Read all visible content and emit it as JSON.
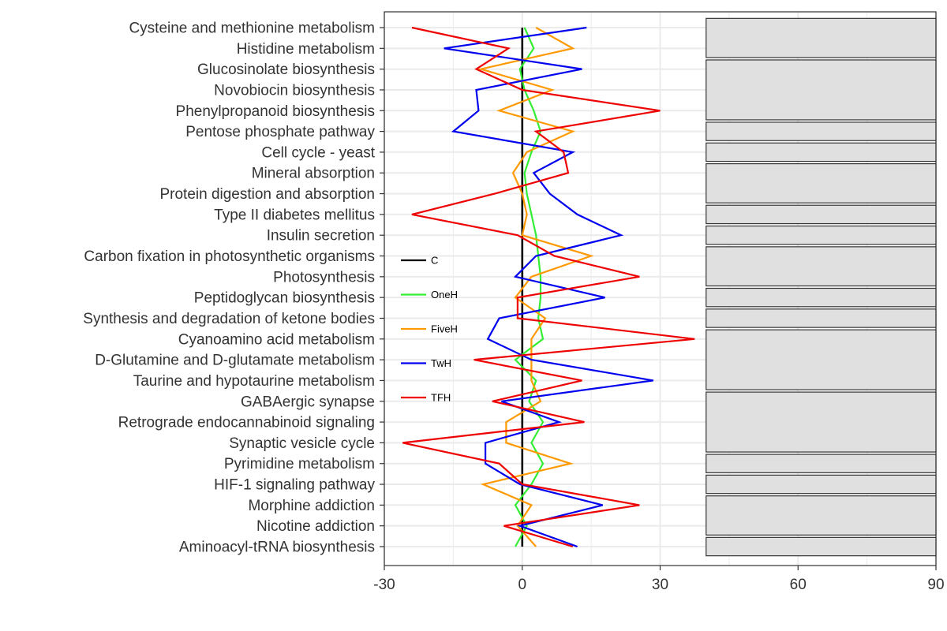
{
  "chart_data": {
    "type": "line",
    "orientation": "horizontal",
    "categories": [
      "Cysteine and methionine metabolism",
      "Histidine metabolism",
      "Glucosinolate biosynthesis",
      "Novobiocin biosynthesis",
      "Phenylpropanoid biosynthesis",
      "Pentose phosphate pathway",
      "Cell cycle - yeast",
      "Mineral absorption",
      "Protein digestion and absorption",
      "Type II diabetes mellitus",
      "Insulin secretion",
      "Carbon fixation in photosynthetic organisms",
      "Photosynthesis",
      "Peptidoglycan biosynthesis",
      "Synthesis and degradation of ketone bodies",
      "Cyanoamino acid metabolism",
      "D-Glutamine and D-glutamate metabolism",
      "Taurine and hypotaurine metabolism",
      "GABAergic synapse",
      "Retrograde endocannabinoid signaling",
      "Synaptic vesicle cycle",
      "Pyrimidine metabolism",
      "HIF-1 signaling pathway",
      "Morphine addiction",
      "Nicotine addiction",
      "Aminoacyl-tRNA biosynthesis"
    ],
    "series": [
      {
        "name": "C",
        "color": "#000000",
        "values": [
          0,
          0,
          0,
          0,
          0,
          0,
          0,
          0,
          0,
          0,
          0,
          0,
          0,
          0,
          0,
          0,
          0,
          0,
          0,
          0,
          0,
          0,
          0,
          0,
          0,
          0
        ]
      },
      {
        "name": "OneH",
        "color": "#33ee33",
        "values": [
          0.5,
          2.5,
          -0.5,
          0.5,
          2.5,
          4,
          2,
          0.5,
          1,
          2,
          3,
          3.5,
          4,
          4,
          3.5,
          4.5,
          -1.5,
          3,
          1.5,
          4.5,
          2,
          4.5,
          2,
          -1.5,
          1,
          -1.5
        ]
      },
      {
        "name": "FiveH",
        "color": "#ff9900",
        "values": [
          3,
          11,
          -9,
          6.5,
          -5,
          11,
          1,
          -2,
          0,
          1,
          0,
          15,
          2,
          -1.5,
          5,
          2,
          2,
          2,
          4,
          -3.5,
          -3.5,
          10.5,
          -8.5,
          2,
          -1,
          3
        ]
      },
      {
        "name": "TwH",
        "color": "#0000ee",
        "values": [
          14,
          -17,
          13,
          -10,
          -9.5,
          -15,
          11,
          2.5,
          6,
          12,
          21.5,
          3,
          -1.5,
          18,
          -5,
          -7.5,
          2,
          28.5,
          -4.5,
          8,
          -8,
          -8,
          -0.5,
          17.5,
          -0.5,
          12
        ]
      },
      {
        "name": "TFH",
        "color": "#ee0000",
        "values": [
          -24,
          -3,
          -10,
          0,
          30,
          3,
          9,
          10,
          -6,
          -24,
          -1,
          7,
          25.5,
          -1,
          -1,
          37.5,
          -10.5,
          13,
          -6.5,
          13.5,
          -26,
          -5,
          0,
          25.5,
          -4,
          11
        ]
      }
    ],
    "xlim": [
      -30,
      90
    ],
    "xticks": [
      "-30",
      "0",
      "30",
      "60",
      "90"
    ],
    "grid": true,
    "legend_position": "left, inside plot",
    "right_side_strips": [
      [
        "Cysteine and methionine metabolism",
        "Histidine metabolism"
      ],
      [
        "Glucosinolate biosynthesis",
        "Novobiocin biosynthesis",
        "Phenylpropanoid biosynthesis"
      ],
      [
        "Pentose phosphate pathway"
      ],
      [
        "Cell cycle - yeast"
      ],
      [
        "Mineral absorption",
        "Protein digestion and absorption"
      ],
      [
        "Type II diabetes mellitus"
      ],
      [
        "Insulin secretion"
      ],
      [
        "Carbon fixation in photosynthetic organisms",
        "Photosynthesis"
      ],
      [
        "Peptidoglycan biosynthesis"
      ],
      [
        "Synthesis and degradation of ketone bodies"
      ],
      [
        "Cyanoamino acid metabolism",
        "D-Glutamine and D-glutamate metabolism",
        "Taurine and hypotaurine metabolism"
      ],
      [
        "GABAergic synapse",
        "Retrograde endocannabinoid signaling",
        "Synaptic vesicle cycle"
      ],
      [
        "Pyrimidine metabolism"
      ],
      [
        "HIF-1 signaling pathway"
      ],
      [
        "Morphine addiction",
        "Nicotine addiction"
      ],
      [
        "Aminoacyl-tRNA biosynthesis"
      ]
    ],
    "strip_color": "#e0e0e0"
  }
}
